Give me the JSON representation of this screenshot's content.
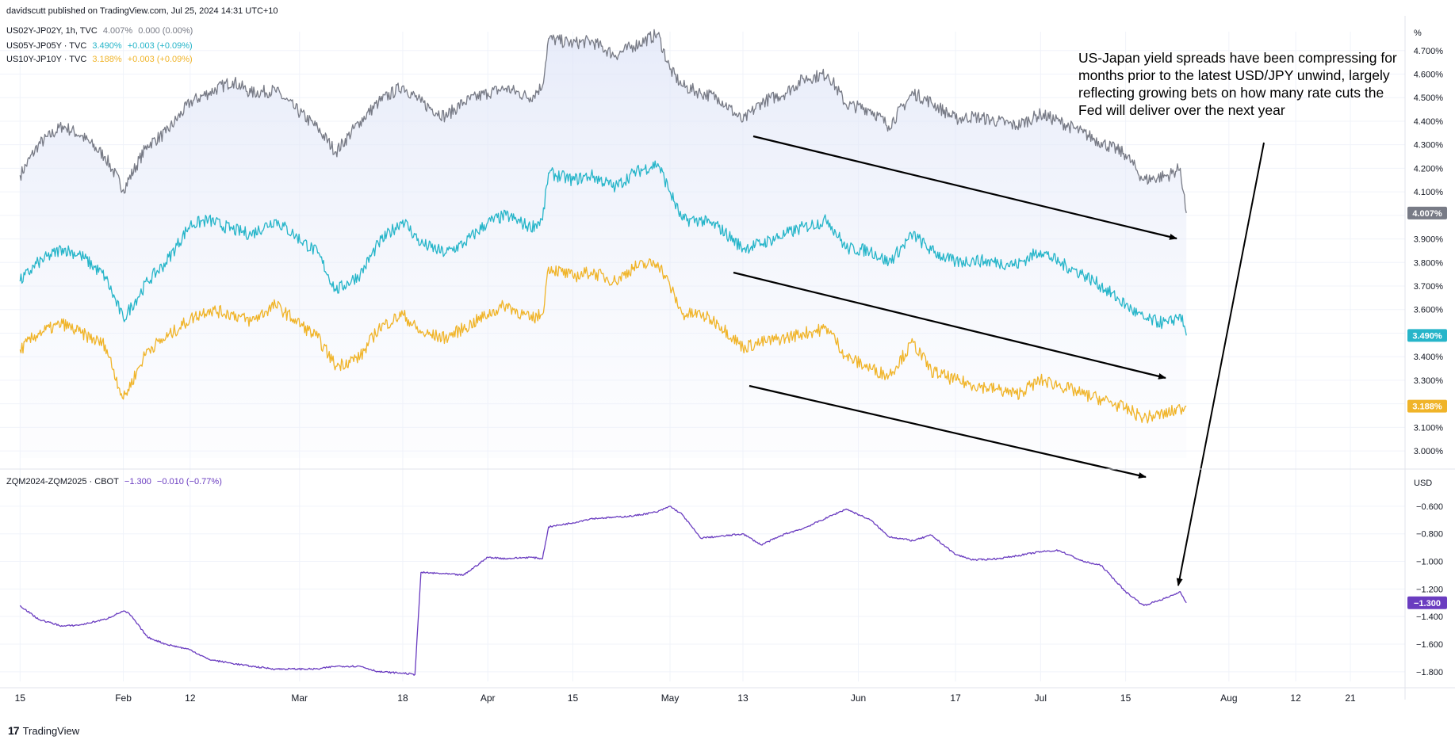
{
  "header": {
    "published": "davidscutt published on TradingView.com, Jul 25, 2024 14:31 UTC+10"
  },
  "legend_top": [
    {
      "name": "US02Y-JP02Y, 1h, TVC",
      "value": "4.007%",
      "change": "0.000 (0.00%)",
      "color": "#787b86"
    },
    {
      "name": "US05Y-JP05Y · TVC",
      "value": "3.490%",
      "change": "+0.003 (+0.09%)",
      "color": "#26b5c9"
    },
    {
      "name": "US10Y-JP10Y · TVC",
      "value": "3.188%",
      "change": "+0.003 (+0.09%)",
      "color": "#f0b429"
    }
  ],
  "legend_bottom": {
    "name": "ZQM2024-ZQM2025 · CBOT",
    "value": "−1.300",
    "change": "−0.010 (−0.77%)",
    "color": "#6a3cc0"
  },
  "annotation": "US-Japan yield spreads have been compressing for months prior to the latest USD/JPY unwind, largely reflecting growing bets on how many rate cuts the Fed will deliver over the next year",
  "brand": {
    "logo": "17",
    "name": "TradingView"
  },
  "axes": {
    "top_unit": "%",
    "bottom_unit": "USD"
  },
  "colors": {
    "gray": "#787b86",
    "cyan": "#26b5c9",
    "orange": "#f0b429",
    "purple": "#6a3cc0",
    "grid": "#f0f3fa"
  },
  "chart_data": [
    {
      "type": "line",
      "ylim": [
        2.97,
        4.78
      ],
      "yticks": [
        "4.700%",
        "4.600%",
        "4.500%",
        "4.400%",
        "4.300%",
        "4.200%",
        "4.100%",
        "4.000%",
        "3.900%",
        "3.800%",
        "3.700%",
        "3.600%",
        "3.500%",
        "3.400%",
        "3.300%",
        "3.200%",
        "3.100%",
        "3.000%"
      ],
      "series": [
        {
          "name": "US02Y-JP02Y",
          "last_label": "4.007%",
          "x": [
            "2024-01-15",
            "2024-01-18",
            "2024-01-22",
            "2024-01-25",
            "2024-01-29",
            "2024-02-01",
            "2024-02-05",
            "2024-02-08",
            "2024-02-12",
            "2024-02-15",
            "2024-02-19",
            "2024-02-22",
            "2024-02-26",
            "2024-02-29",
            "2024-03-04",
            "2024-03-07",
            "2024-03-11",
            "2024-03-14",
            "2024-03-18",
            "2024-03-21",
            "2024-03-25",
            "2024-03-28",
            "2024-04-01",
            "2024-04-04",
            "2024-04-08",
            "2024-04-10",
            "2024-04-11",
            "2024-04-15",
            "2024-04-18",
            "2024-04-22",
            "2024-04-25",
            "2024-04-29",
            "2024-05-01",
            "2024-05-03",
            "2024-05-06",
            "2024-05-09",
            "2024-05-13",
            "2024-05-16",
            "2024-05-20",
            "2024-05-23",
            "2024-05-27",
            "2024-05-30",
            "2024-06-03",
            "2024-06-06",
            "2024-06-10",
            "2024-06-13",
            "2024-06-17",
            "2024-06-20",
            "2024-06-24",
            "2024-06-27",
            "2024-07-01",
            "2024-07-04",
            "2024-07-08",
            "2024-07-11",
            "2024-07-15",
            "2024-07-18",
            "2024-07-22",
            "2024-07-24",
            "2024-07-25"
          ],
          "y": [
            4.17,
            4.3,
            4.38,
            4.34,
            4.25,
            4.11,
            4.3,
            4.35,
            4.48,
            4.52,
            4.57,
            4.52,
            4.53,
            4.46,
            4.37,
            4.27,
            4.4,
            4.48,
            4.55,
            4.48,
            4.42,
            4.48,
            4.52,
            4.54,
            4.5,
            4.55,
            4.75,
            4.73,
            4.74,
            4.68,
            4.72,
            4.77,
            4.62,
            4.55,
            4.52,
            4.5,
            4.4,
            4.48,
            4.52,
            4.58,
            4.6,
            4.47,
            4.45,
            4.38,
            4.52,
            4.48,
            4.41,
            4.42,
            4.4,
            4.38,
            4.43,
            4.4,
            4.35,
            4.31,
            4.26,
            4.15,
            4.17,
            4.2,
            4.01
          ]
        },
        {
          "name": "US05Y-JP05Y",
          "last_label": "3.490%",
          "x": [
            "2024-01-15",
            "2024-01-18",
            "2024-01-22",
            "2024-01-25",
            "2024-01-29",
            "2024-02-01",
            "2024-02-05",
            "2024-02-08",
            "2024-02-12",
            "2024-02-15",
            "2024-02-19",
            "2024-02-22",
            "2024-02-26",
            "2024-02-29",
            "2024-03-04",
            "2024-03-07",
            "2024-03-11",
            "2024-03-14",
            "2024-03-18",
            "2024-03-21",
            "2024-03-25",
            "2024-03-28",
            "2024-04-01",
            "2024-04-04",
            "2024-04-08",
            "2024-04-10",
            "2024-04-11",
            "2024-04-15",
            "2024-04-18",
            "2024-04-22",
            "2024-04-25",
            "2024-04-29",
            "2024-05-01",
            "2024-05-03",
            "2024-05-06",
            "2024-05-09",
            "2024-05-13",
            "2024-05-16",
            "2024-05-20",
            "2024-05-23",
            "2024-05-27",
            "2024-05-30",
            "2024-06-03",
            "2024-06-06",
            "2024-06-10",
            "2024-06-13",
            "2024-06-17",
            "2024-06-20",
            "2024-06-24",
            "2024-06-27",
            "2024-07-01",
            "2024-07-04",
            "2024-07-08",
            "2024-07-11",
            "2024-07-15",
            "2024-07-18",
            "2024-07-22",
            "2024-07-24",
            "2024-07-25"
          ],
          "y": [
            3.72,
            3.8,
            3.86,
            3.83,
            3.74,
            3.56,
            3.72,
            3.8,
            3.96,
            3.98,
            3.94,
            3.92,
            3.98,
            3.92,
            3.84,
            3.68,
            3.75,
            3.88,
            3.98,
            3.88,
            3.84,
            3.88,
            3.97,
            4.0,
            3.95,
            3.98,
            4.18,
            4.15,
            4.17,
            4.12,
            4.18,
            4.22,
            4.1,
            3.98,
            3.98,
            3.95,
            3.86,
            3.88,
            3.92,
            3.95,
            3.98,
            3.86,
            3.85,
            3.8,
            3.92,
            3.85,
            3.8,
            3.81,
            3.8,
            3.79,
            3.85,
            3.8,
            3.75,
            3.7,
            3.62,
            3.56,
            3.54,
            3.58,
            3.49
          ]
        },
        {
          "name": "US10Y-JP10Y",
          "last_label": "3.188%",
          "x": [
            "2024-01-15",
            "2024-01-18",
            "2024-01-22",
            "2024-01-25",
            "2024-01-29",
            "2024-02-01",
            "2024-02-05",
            "2024-02-08",
            "2024-02-12",
            "2024-02-15",
            "2024-02-19",
            "2024-02-22",
            "2024-02-26",
            "2024-02-29",
            "2024-03-04",
            "2024-03-07",
            "2024-03-11",
            "2024-03-14",
            "2024-03-18",
            "2024-03-21",
            "2024-03-25",
            "2024-03-28",
            "2024-04-01",
            "2024-04-04",
            "2024-04-08",
            "2024-04-10",
            "2024-04-11",
            "2024-04-15",
            "2024-04-18",
            "2024-04-22",
            "2024-04-25",
            "2024-04-29",
            "2024-05-01",
            "2024-05-03",
            "2024-05-06",
            "2024-05-09",
            "2024-05-13",
            "2024-05-16",
            "2024-05-20",
            "2024-05-23",
            "2024-05-27",
            "2024-05-30",
            "2024-06-03",
            "2024-06-06",
            "2024-06-10",
            "2024-06-13",
            "2024-06-17",
            "2024-06-20",
            "2024-06-24",
            "2024-06-27",
            "2024-07-01",
            "2024-07-04",
            "2024-07-08",
            "2024-07-11",
            "2024-07-15",
            "2024-07-18",
            "2024-07-22",
            "2024-07-24",
            "2024-07-25"
          ],
          "y": [
            3.43,
            3.5,
            3.54,
            3.5,
            3.45,
            3.22,
            3.43,
            3.48,
            3.56,
            3.6,
            3.58,
            3.55,
            3.62,
            3.56,
            3.48,
            3.36,
            3.4,
            3.52,
            3.58,
            3.5,
            3.48,
            3.52,
            3.58,
            3.62,
            3.56,
            3.58,
            3.78,
            3.74,
            3.76,
            3.72,
            3.78,
            3.8,
            3.7,
            3.58,
            3.58,
            3.54,
            3.44,
            3.46,
            3.48,
            3.5,
            3.52,
            3.4,
            3.35,
            3.32,
            3.46,
            3.34,
            3.3,
            3.28,
            3.26,
            3.24,
            3.3,
            3.28,
            3.24,
            3.22,
            3.18,
            3.14,
            3.16,
            3.18,
            3.19
          ]
        }
      ]
    },
    {
      "type": "line",
      "ylim": [
        -1.87,
        -0.48
      ],
      "yticks": [
        "−0.600",
        "−0.800",
        "−1.000",
        "−1.200",
        "−1.400",
        "−1.600",
        "−1.800"
      ],
      "series": [
        {
          "name": "ZQM2024-ZQM2025",
          "last_label": "−1.300",
          "x": [
            "2024-01-15",
            "2024-01-18",
            "2024-01-22",
            "2024-01-25",
            "2024-01-29",
            "2024-02-01",
            "2024-02-02",
            "2024-02-05",
            "2024-02-08",
            "2024-02-12",
            "2024-02-15",
            "2024-02-19",
            "2024-02-22",
            "2024-02-26",
            "2024-02-29",
            "2024-03-04",
            "2024-03-07",
            "2024-03-11",
            "2024-03-14",
            "2024-03-18",
            "2024-03-20",
            "2024-03-21",
            "2024-03-25",
            "2024-03-28",
            "2024-04-01",
            "2024-04-04",
            "2024-04-08",
            "2024-04-10",
            "2024-04-11",
            "2024-04-15",
            "2024-04-18",
            "2024-04-22",
            "2024-04-25",
            "2024-04-29",
            "2024-05-01",
            "2024-05-03",
            "2024-05-06",
            "2024-05-09",
            "2024-05-13",
            "2024-05-16",
            "2024-05-20",
            "2024-05-23",
            "2024-05-27",
            "2024-05-30",
            "2024-06-03",
            "2024-06-06",
            "2024-06-10",
            "2024-06-13",
            "2024-06-17",
            "2024-06-20",
            "2024-06-24",
            "2024-06-27",
            "2024-07-01",
            "2024-07-04",
            "2024-07-08",
            "2024-07-11",
            "2024-07-15",
            "2024-07-18",
            "2024-07-22",
            "2024-07-24",
            "2024-07-25"
          ],
          "y": [
            -1.32,
            -1.42,
            -1.47,
            -1.46,
            -1.42,
            -1.36,
            -1.38,
            -1.55,
            -1.6,
            -1.64,
            -1.71,
            -1.74,
            -1.76,
            -1.78,
            -1.78,
            -1.78,
            -1.76,
            -1.76,
            -1.8,
            -1.81,
            -1.82,
            -1.08,
            -1.09,
            -1.1,
            -0.97,
            -0.98,
            -0.97,
            -0.98,
            -0.75,
            -0.72,
            -0.69,
            -0.68,
            -0.67,
            -0.64,
            -0.6,
            -0.66,
            -0.83,
            -0.82,
            -0.8,
            -0.88,
            -0.8,
            -0.76,
            -0.68,
            -0.62,
            -0.7,
            -0.82,
            -0.85,
            -0.81,
            -0.95,
            -0.99,
            -0.98,
            -0.96,
            -0.93,
            -0.92,
            -1.0,
            -1.03,
            -1.22,
            -1.32,
            -1.26,
            -1.22,
            -1.3
          ]
        }
      ]
    }
  ],
  "xaxis": {
    "labels": [
      "15",
      "Feb",
      "12",
      "Mar",
      "18",
      "Apr",
      "15",
      "May",
      "13",
      "Jun",
      "17",
      "Jul",
      "15",
      "Aug",
      "12",
      "21"
    ],
    "dates": [
      "2024-01-15",
      "2024-02-01",
      "2024-02-12",
      "2024-03-01",
      "2024-03-18",
      "2024-04-01",
      "2024-04-15",
      "2024-05-01",
      "2024-05-13",
      "2024-06-01",
      "2024-06-17",
      "2024-07-01",
      "2024-07-15",
      "2024-08-01",
      "2024-08-12",
      "2024-08-21"
    ]
  }
}
